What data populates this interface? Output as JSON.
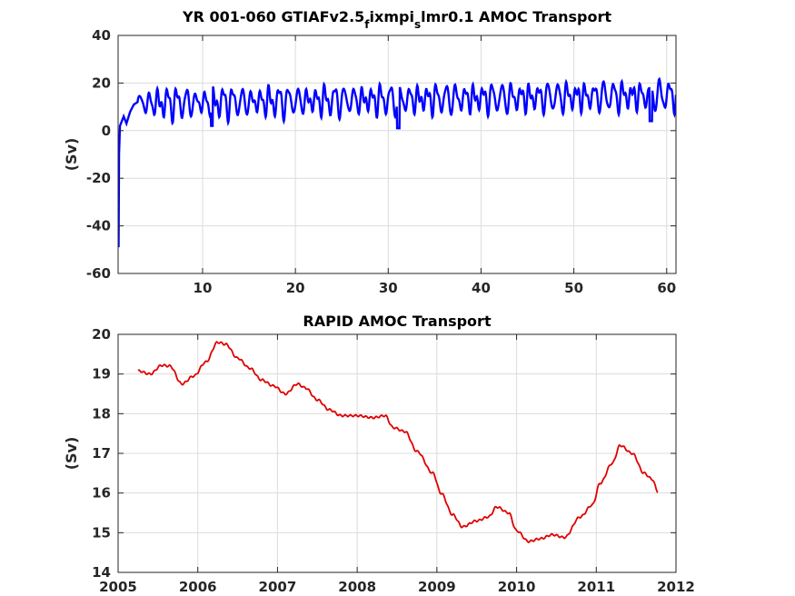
{
  "chart_data": [
    {
      "type": "line",
      "title_parts": [
        "YR 001-060 GTIAFv2.5",
        "f",
        "ixmpi",
        "s",
        "lmr0.1 AMOC Transport"
      ],
      "xlabel": "",
      "ylabel": "(Sv)",
      "xlim": [
        0.9,
        61
      ],
      "ylim": [
        -60,
        40
      ],
      "xticks": [
        10,
        20,
        30,
        40,
        50,
        60
      ],
      "yticks": [
        -60,
        -40,
        -20,
        0,
        20,
        40
      ],
      "grid": true,
      "legend": "none",
      "series": [
        {
          "color": "#0000ff",
          "description_values": {
            "start_value": -49,
            "spinup_end_year": 1.5,
            "spinup_end_value": 5,
            "seasonal_mean": 12.5,
            "seasonal_amplitude": 4.5,
            "trend_per_decade": 0.6
          },
          "x": [
            0.95,
            1.0,
            1.1,
            1.3,
            1.5,
            1.8,
            2.2,
            2.6,
            3.0,
            5,
            10,
            15,
            20,
            25,
            30,
            31,
            35,
            40,
            45,
            50,
            52,
            55,
            58,
            60,
            61
          ],
          "y": [
            -49,
            -10,
            2,
            4,
            6,
            3,
            8,
            11,
            12,
            12.5,
            11.5,
            12,
            12.5,
            11.5,
            12,
            7,
            12.5,
            13,
            13,
            13.5,
            15,
            14.5,
            12,
            15,
            15
          ]
        }
      ]
    },
    {
      "type": "line",
      "title": "RAPID AMOC Transport",
      "xlabel": "",
      "ylabel": "(Sv)",
      "xlim": [
        2005,
        2012
      ],
      "ylim": [
        14,
        20
      ],
      "xticks": [
        2005,
        2006,
        2007,
        2008,
        2009,
        2010,
        2011,
        2012
      ],
      "yticks": [
        14,
        15,
        16,
        17,
        18,
        19,
        20
      ],
      "grid": true,
      "legend": "none",
      "series": [
        {
          "color": "#e00000",
          "x": [
            2005.25,
            2005.4,
            2005.55,
            2005.65,
            2005.8,
            2005.95,
            2006.1,
            2006.25,
            2006.35,
            2006.5,
            2006.65,
            2006.8,
            2006.95,
            2007.1,
            2007.25,
            2007.35,
            2007.5,
            2007.65,
            2007.8,
            2008.0,
            2008.2,
            2008.35,
            2008.45,
            2008.6,
            2008.75,
            2008.95,
            2009.05,
            2009.2,
            2009.32,
            2009.5,
            2009.65,
            2009.75,
            2009.9,
            2010.0,
            2010.15,
            2010.3,
            2010.45,
            2010.6,
            2010.8,
            2010.95,
            2011.05,
            2011.2,
            2011.3,
            2011.45,
            2011.6,
            2011.7,
            2011.77
          ],
          "y": [
            19.08,
            19.0,
            19.22,
            19.2,
            18.75,
            18.95,
            19.3,
            19.8,
            19.75,
            19.4,
            19.15,
            18.85,
            18.7,
            18.5,
            18.75,
            18.65,
            18.35,
            18.1,
            17.95,
            17.95,
            17.9,
            17.95,
            17.65,
            17.55,
            17.05,
            16.5,
            16.0,
            15.45,
            15.15,
            15.3,
            15.4,
            15.65,
            15.5,
            15.05,
            14.78,
            14.85,
            14.95,
            14.88,
            15.4,
            15.7,
            16.25,
            16.75,
            17.2,
            17.0,
            16.5,
            16.35,
            16.05
          ]
        }
      ]
    }
  ]
}
